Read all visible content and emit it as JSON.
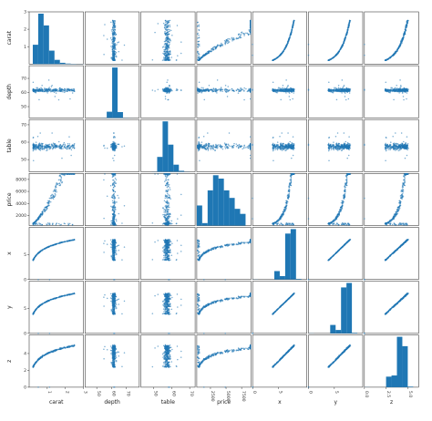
{
  "chart_data": {
    "type": "scatter",
    "subtype": "scatter-matrix",
    "variables": [
      "carat",
      "depth",
      "table",
      "price",
      "x",
      "y",
      "z"
    ],
    "color": "#1f77b4",
    "diagonal": "histogram",
    "ranges": {
      "carat": [
        0,
        3
      ],
      "depth": [
        42,
        79
      ],
      "table": [
        43,
        73
      ],
      "price": [
        300,
        9000
      ],
      "x": [
        0,
        10.5
      ],
      "y": [
        0,
        10.5
      ],
      "z": [
        0,
        6.2
      ]
    },
    "axis_ticks": {
      "carat": [
        1,
        2,
        3
      ],
      "depth": [
        50,
        60,
        70
      ],
      "table": [
        50,
        60,
        70
      ],
      "price": [
        2500,
        5000,
        7500
      ],
      "x": [
        0,
        5
      ],
      "y": [
        0,
        5
      ],
      "z": [
        0.0,
        2.5,
        5.0
      ]
    },
    "row_ticks": {
      "carat": [
        1,
        2,
        3
      ],
      "depth": [
        50,
        60,
        70
      ],
      "table": [
        50,
        60,
        70
      ],
      "price": [
        2000,
        4000,
        6000,
        8000
      ],
      "x": [
        0,
        5
      ],
      "y": [
        0,
        5
      ],
      "z": [
        0,
        2,
        4
      ]
    },
    "tick_labels": {
      "carat": [
        "1",
        "2",
        "3"
      ],
      "depth": [
        "50",
        "60",
        "70"
      ],
      "table": [
        "50",
        "60",
        "70"
      ],
      "price": [
        "2500",
        "5000",
        "7500"
      ],
      "x": [
        "0",
        "5"
      ],
      "y": [
        "0",
        "5"
      ],
      "z": [
        "0.0",
        "2.5",
        "5.0"
      ]
    },
    "row_tick_labels": {
      "carat": [
        "1",
        "2",
        "3"
      ],
      "depth": [
        "50",
        "60",
        "70"
      ],
      "table": [
        "50",
        "60",
        "70"
      ],
      "price": [
        "2000",
        "4000",
        "6000",
        "8000"
      ],
      "x": [
        "0",
        "5"
      ],
      "y": [
        "0",
        "5"
      ],
      "z": [
        "0",
        "2",
        "4"
      ]
    },
    "histograms": {
      "carat": {
        "bins": [
          0.2,
          0.5,
          0.8,
          1.1,
          1.4,
          1.7,
          2.0,
          2.3,
          2.6,
          2.9,
          3.2
        ],
        "counts": [
          230,
          600,
          460,
          160,
          50,
          15,
          6,
          3,
          1,
          1
        ]
      },
      "depth": {
        "bins": [
          42,
          45.7,
          49.4,
          53.1,
          56.8,
          60.5,
          64.2,
          67.9,
          71.6,
          75.3,
          79
        ],
        "counts": [
          0,
          0,
          0,
          4,
          160,
          1300,
          150,
          5,
          1,
          0
        ]
      },
      "table": {
        "bins": [
          43,
          46,
          49,
          52,
          55,
          58,
          61,
          64,
          67,
          70,
          73
        ],
        "counts": [
          0,
          0,
          2,
          230,
          780,
          420,
          110,
          15,
          2,
          0
        ]
      },
      "price": {
        "bins": [
          300,
          1170,
          2040,
          2910,
          3780,
          4650,
          5520,
          6390,
          7260,
          8130,
          9000
        ],
        "counts": [
          240,
          30,
          420,
          600,
          560,
          420,
          330,
          200,
          140,
          0
        ]
      },
      "x": {
        "bins": [
          0,
          1.05,
          2.1,
          3.15,
          4.2,
          5.25,
          6.3,
          7.35,
          8.4,
          9.45,
          10.5
        ],
        "counts": [
          2,
          0,
          0,
          0,
          150,
          60,
          820,
          900,
          10,
          0
        ]
      },
      "y": {
        "bins": [
          0,
          1.05,
          2.1,
          3.15,
          4.2,
          5.25,
          6.3,
          7.35,
          8.4,
          9.45,
          10.5
        ],
        "counts": [
          2,
          0,
          0,
          0,
          150,
          60,
          820,
          900,
          10,
          0
        ]
      },
      "z": {
        "bins": [
          0,
          0.62,
          1.24,
          1.86,
          2.48,
          3.1,
          3.72,
          4.34,
          4.96,
          5.58,
          6.2
        ],
        "counts": [
          2,
          0,
          0,
          0,
          180,
          200,
          860,
          700,
          10,
          0
        ]
      }
    },
    "point_count": 300,
    "title": "",
    "xlabel": "",
    "ylabel": ""
  }
}
